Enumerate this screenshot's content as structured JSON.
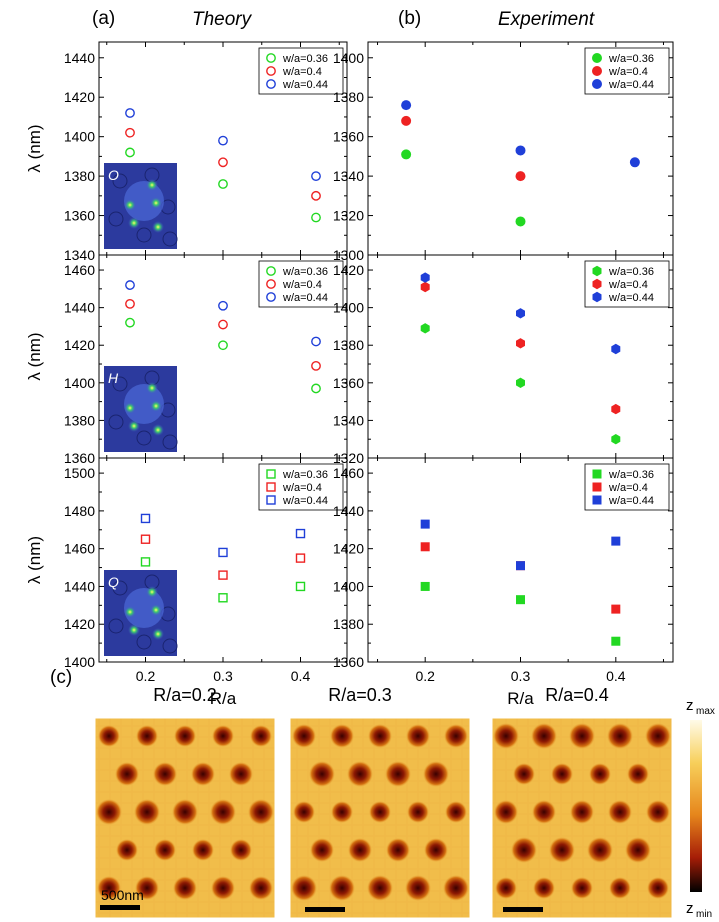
{
  "headers": {
    "panel_a_label": "(a)",
    "panel_a_title": "Theory",
    "panel_b_label": "(b)",
    "panel_b_title": "Experiment",
    "panel_c_label": "(c)"
  },
  "colors": {
    "green": "#22d822",
    "red": "#ee2222",
    "blue": "#1f3fd8"
  },
  "chart_data": [
    {
      "type": "scatter",
      "panel": "theory",
      "row": 1,
      "ylabel": "λ (nm)",
      "ylim": [
        1340,
        1448
      ],
      "yticks": [
        "1340",
        "1360",
        "1380",
        "1400",
        "1420",
        "1440"
      ],
      "xlim": [
        0.14,
        0.46
      ],
      "marker": "open-circle",
      "inset_label": "O",
      "legend_position": "top-right",
      "series": [
        {
          "name": "w/a=0.36",
          "color": "green",
          "x": [
            0.18,
            0.3,
            0.42
          ],
          "y": [
            1392,
            1376,
            1359
          ]
        },
        {
          "name": "w/a=0.4",
          "color": "red",
          "x": [
            0.18,
            0.3,
            0.42
          ],
          "y": [
            1402,
            1387,
            1370
          ]
        },
        {
          "name": "w/a=0.44",
          "color": "blue",
          "x": [
            0.18,
            0.3,
            0.42
          ],
          "y": [
            1412,
            1398,
            1380
          ]
        }
      ]
    },
    {
      "type": "scatter",
      "panel": "theory",
      "row": 2,
      "ylabel": "λ (nm)",
      "ylim": [
        1360,
        1468
      ],
      "yticks": [
        "1360",
        "1380",
        "1400",
        "1420",
        "1440",
        "1460"
      ],
      "xlim": [
        0.14,
        0.46
      ],
      "marker": "open-circle",
      "inset_label": "H",
      "legend_position": "top-right",
      "series": [
        {
          "name": "w/a=0.36",
          "color": "green",
          "x": [
            0.18,
            0.3,
            0.42
          ],
          "y": [
            1432,
            1420,
            1397
          ]
        },
        {
          "name": "w/a=0.4",
          "color": "red",
          "x": [
            0.18,
            0.3,
            0.42
          ],
          "y": [
            1442,
            1431,
            1409
          ]
        },
        {
          "name": "w/a=0.44",
          "color": "blue",
          "x": [
            0.18,
            0.3,
            0.42
          ],
          "y": [
            1452,
            1441,
            1422
          ]
        }
      ]
    },
    {
      "type": "scatter",
      "panel": "theory",
      "row": 3,
      "ylabel": "λ (nm)",
      "xlabel": "R/a",
      "ylim": [
        1400,
        1508
      ],
      "yticks": [
        "1400",
        "1420",
        "1440",
        "1460",
        "1480",
        "1500"
      ],
      "xlim": [
        0.14,
        0.46
      ],
      "xticks": [
        "0.2",
        "0.3",
        "0.4"
      ],
      "marker": "open-square",
      "inset_label": "Q",
      "legend_position": "top-right",
      "series": [
        {
          "name": "w/a=0.36",
          "color": "green",
          "x": [
            0.2,
            0.3,
            0.4
          ],
          "y": [
            1453,
            1434,
            1440
          ]
        },
        {
          "name": "w/a=0.4",
          "color": "red",
          "x": [
            0.2,
            0.3,
            0.4
          ],
          "y": [
            1465,
            1446,
            1455
          ]
        },
        {
          "name": "w/a=0.44",
          "color": "blue",
          "x": [
            0.2,
            0.3,
            0.4
          ],
          "y": [
            1476,
            1458,
            1468
          ]
        }
      ]
    },
    {
      "type": "scatter",
      "panel": "experiment",
      "row": 1,
      "ylim": [
        1300,
        1408
      ],
      "yticks": [
        "1300",
        "1320",
        "1340",
        "1360",
        "1380",
        "1400"
      ],
      "xlim": [
        0.14,
        0.46
      ],
      "marker": "filled-circle",
      "legend_position": "top-right",
      "series": [
        {
          "name": "w/a=0.36",
          "color": "green",
          "x": [
            0.18,
            0.3
          ],
          "y": [
            1351,
            1317
          ]
        },
        {
          "name": "w/a=0.4",
          "color": "red",
          "x": [
            0.18,
            0.3
          ],
          "y": [
            1368,
            1340
          ]
        },
        {
          "name": "w/a=0.44",
          "color": "blue",
          "x": [
            0.18,
            0.3,
            0.42
          ],
          "y": [
            1376,
            1353,
            1347
          ]
        }
      ]
    },
    {
      "type": "scatter",
      "panel": "experiment",
      "row": 2,
      "ylim": [
        1320,
        1428
      ],
      "yticks": [
        "1320",
        "1340",
        "1360",
        "1380",
        "1400",
        "1420"
      ],
      "xlim": [
        0.14,
        0.46
      ],
      "marker": "filled-hexagon",
      "legend_position": "top-right",
      "series": [
        {
          "name": "w/a=0.36",
          "color": "green",
          "x": [
            0.2,
            0.3,
            0.4
          ],
          "y": [
            1389,
            1360,
            1330
          ]
        },
        {
          "name": "w/a=0.4",
          "color": "red",
          "x": [
            0.2,
            0.3,
            0.4
          ],
          "y": [
            1411,
            1381,
            1346
          ]
        },
        {
          "name": "w/a=0.44",
          "color": "blue",
          "x": [
            0.2,
            0.3,
            0.4
          ],
          "y": [
            1416,
            1397,
            1378
          ]
        }
      ]
    },
    {
      "type": "scatter",
      "panel": "experiment",
      "row": 3,
      "xlabel": "R/a",
      "ylim": [
        1360,
        1468
      ],
      "yticks": [
        "1360",
        "1380",
        "1400",
        "1420",
        "1440",
        "1460"
      ],
      "xlim": [
        0.14,
        0.46
      ],
      "xticks": [
        "0.2",
        "0.3",
        "0.4"
      ],
      "marker": "filled-square",
      "legend_position": "top-right",
      "series": [
        {
          "name": "w/a=0.36",
          "color": "green",
          "x": [
            0.2,
            0.3,
            0.4
          ],
          "y": [
            1400,
            1393,
            1371
          ]
        },
        {
          "name": "w/a=0.4",
          "color": "red",
          "x": [
            0.2,
            0.3,
            0.4
          ],
          "y": [
            1421,
            1411,
            1388
          ]
        },
        {
          "name": "w/a=0.44",
          "color": "blue",
          "x": [
            0.2,
            0.3,
            0.4
          ],
          "y": [
            1433,
            1411,
            1424
          ]
        }
      ]
    }
  ],
  "maps": {
    "titles": [
      "R/a=0.2",
      "R/a=0.3",
      "R/a=0.4"
    ],
    "scalebar_label": "500nm",
    "colorbar_max_label": "z",
    "colorbar_max_sub": "max",
    "colorbar_min_label": "z",
    "colorbar_min_sub": "min"
  }
}
